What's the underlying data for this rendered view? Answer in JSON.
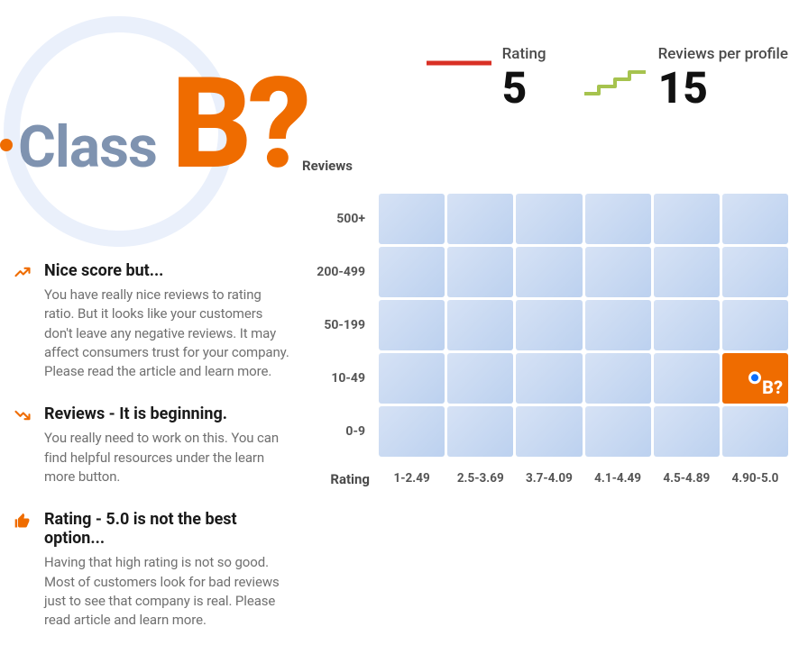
{
  "header": {
    "class_label": "Class",
    "grade": "B?",
    "accent_color": "#ef6c00",
    "muted_color": "#7f93b0"
  },
  "stats": {
    "rating": {
      "label": "Rating",
      "value": "5",
      "sparkline_color": "#d93025"
    },
    "reviews_per_profile": {
      "label": "Reviews per profile",
      "value": "15",
      "sparkline_color": "#a6c34e"
    }
  },
  "insights": [
    {
      "icon": "trend-up",
      "title": "Nice score but...",
      "body": "You have really nice reviews to rating ratio. But it looks like your customers don't leave any negative reviews. It may affect consumers trust for your company. Please read the article and learn more."
    },
    {
      "icon": "trend-down",
      "title": "Reviews - It is beginning.",
      "body": "You really need to work on this. You can find helpful resources under the learn more button."
    },
    {
      "icon": "thumb-up",
      "title": "Rating - 5.0 is not the best option...",
      "body": "Having that high rating is not so good. Most of customers look for bad reviews just to see that company is real. Please read article and learn more."
    }
  ],
  "heatmap": {
    "type": "heatmap",
    "y_axis_title": "Reviews",
    "x_axis_title": "Rating",
    "y_ticks": [
      "500+",
      "200-499",
      "50-199",
      "10-49",
      "0-9"
    ],
    "x_ticks": [
      "1-2.49",
      "2.5-3.69",
      "3.7-4.09",
      "4.1-4.49",
      "4.5-4.89",
      "4.90-5.0"
    ],
    "cell_base_color_start": "#d6e2f5",
    "cell_base_color_end": "#bcd1ef",
    "highlight_color": "#ef6c00",
    "marker_color": "#0d6efd",
    "highlight_cell": {
      "row": 3,
      "col": 5,
      "label": "B?"
    },
    "rows": 5,
    "cols": 6
  }
}
